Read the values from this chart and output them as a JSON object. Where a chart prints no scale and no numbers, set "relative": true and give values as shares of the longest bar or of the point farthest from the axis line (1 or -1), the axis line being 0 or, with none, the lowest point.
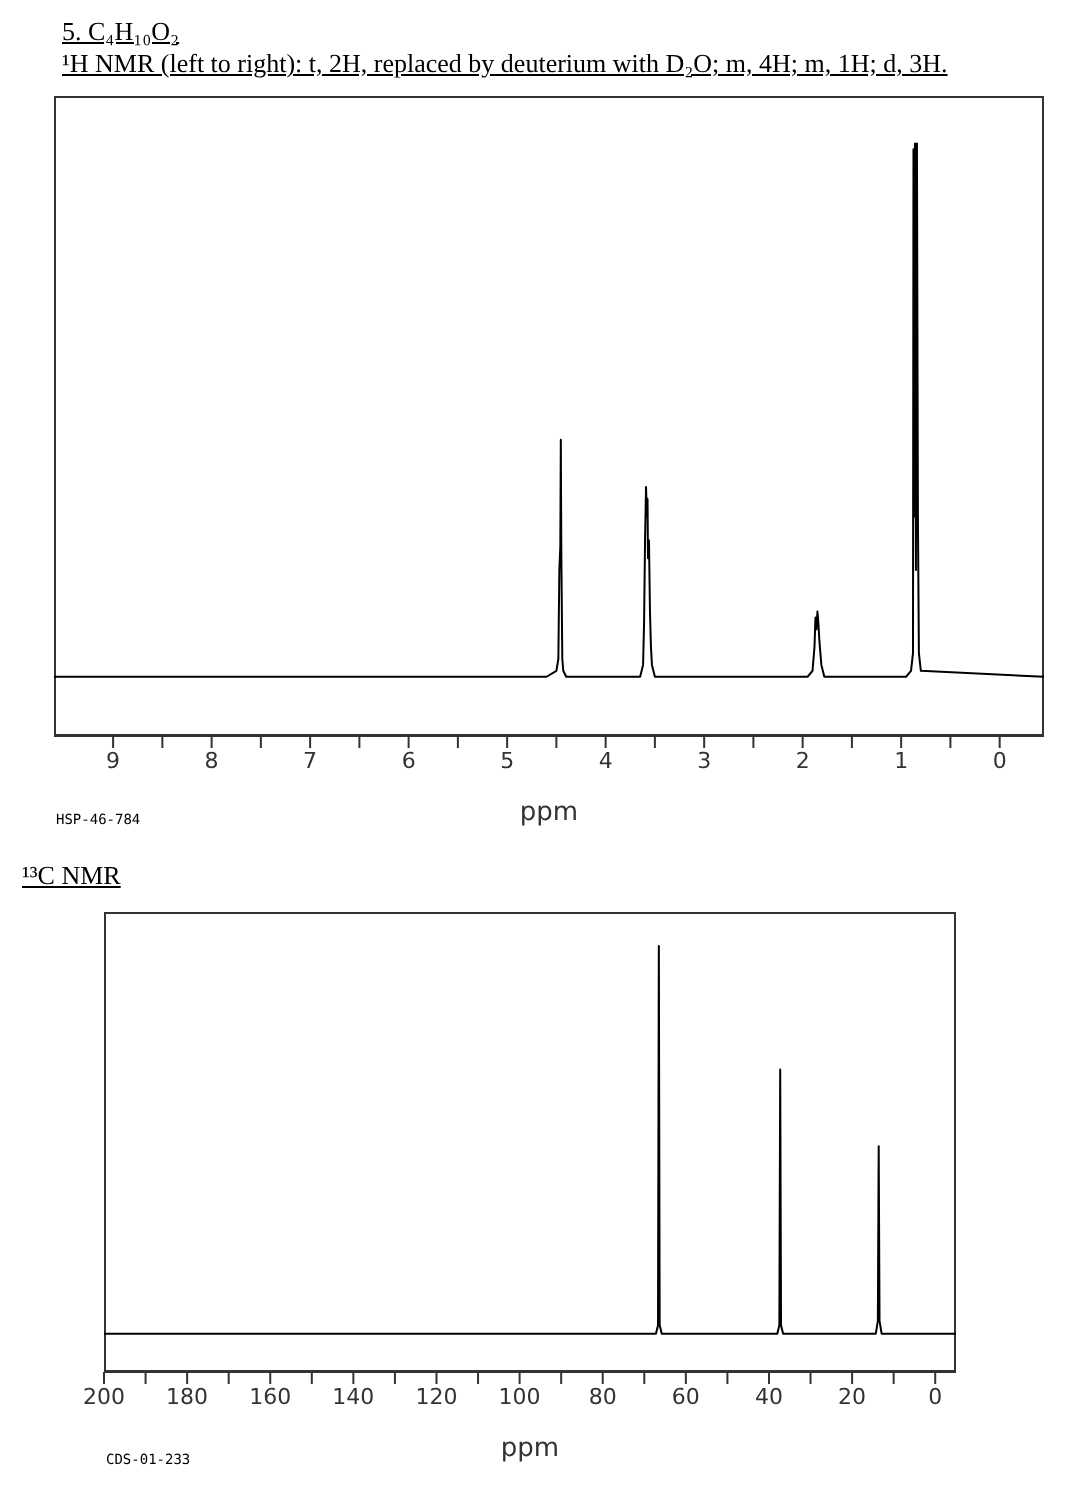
{
  "chart_data": [
    {
      "type": "line",
      "title": "5. C₄H₁₀O₂",
      "subtitle": "¹H NMR (left to right): t, 2H, replaced by deuterium with D₂O; m, 4H; m, 1H; d, 3H.",
      "xlabel": "ppm",
      "relative": true,
      "tick_labels": "x",
      "grid": false,
      "legend": false,
      "marker": "none",
      "line_style": "solid",
      "xlim": [
        9.6,
        -0.45
      ],
      "xticks": [
        9,
        {
          "value": 8.5,
          "label": null
        },
        8,
        {
          "value": 7.5,
          "label": null
        },
        7,
        {
          "value": 6.5,
          "label": null
        },
        6,
        {
          "value": 5.5,
          "label": null
        },
        5,
        {
          "value": 4.5,
          "label": null
        },
        4,
        {
          "value": 3.5,
          "label": null
        },
        3,
        {
          "value": 2.5,
          "label": null
        },
        2,
        {
          "value": 1.5,
          "label": null
        },
        1,
        {
          "value": 0.5,
          "label": null
        },
        0
      ],
      "annotations": [
        "HSP-46-784"
      ],
      "series": [
        {
          "color": "#000000",
          "x": [
            9.6,
            4.6,
            4.5,
            4.48,
            4.47,
            4.46,
            4.455,
            4.45,
            4.44,
            4.43,
            4.4,
            3.65,
            3.62,
            3.61,
            3.6,
            3.59,
            3.58,
            3.575,
            3.57,
            3.56,
            3.55,
            3.54,
            3.53,
            3.5,
            1.95,
            1.9,
            1.88,
            1.87,
            1.86,
            1.85,
            1.84,
            1.83,
            1.81,
            1.78,
            0.95,
            0.9,
            0.88,
            0.875,
            0.87,
            0.86,
            0.85,
            0.845,
            0.84,
            0.83,
            0.82,
            0.8,
            -0.45
          ],
          "values": [
            0.1,
            0.1,
            0.11,
            0.13,
            0.28,
            0.32,
            0.5,
            0.31,
            0.13,
            0.11,
            0.1,
            0.1,
            0.12,
            0.19,
            0.33,
            0.42,
            0.37,
            0.4,
            0.3,
            0.33,
            0.21,
            0.15,
            0.12,
            0.1,
            0.1,
            0.11,
            0.15,
            0.2,
            0.18,
            0.21,
            0.19,
            0.16,
            0.12,
            0.1,
            0.1,
            0.11,
            0.14,
            0.99,
            0.37,
            1,
            0.28,
            0.98,
            1,
            0.37,
            0.14,
            0.11,
            0.1
          ]
        }
      ]
    },
    {
      "type": "line",
      "title": "¹³C NMR",
      "xlabel": "ppm",
      "relative": true,
      "tick_labels": "x",
      "grid": false,
      "legend": false,
      "marker": "none",
      "line_style": "solid",
      "xlim": [
        200,
        -5
      ],
      "xticks": [
        200,
        {
          "value": 190,
          "label": null
        },
        180,
        {
          "value": 170,
          "label": null
        },
        160,
        {
          "value": 150,
          "label": null
        },
        140,
        {
          "value": 130,
          "label": null
        },
        120,
        {
          "value": 110,
          "label": null
        },
        100,
        {
          "value": 90,
          "label": null
        },
        80,
        {
          "value": 70,
          "label": null
        },
        60,
        {
          "value": 50,
          "label": null
        },
        40,
        {
          "value": 30,
          "label": null
        },
        20,
        {
          "value": 10,
          "label": null
        },
        0
      ],
      "annotations": [
        "CDS-01-233"
      ],
      "series": [
        {
          "color": "#000000",
          "x": [
            200,
            67.2,
            66.7,
            66.5,
            66.3,
            65.8,
            38,
            37.5,
            37.3,
            37.1,
            36.6,
            14.3,
            13.8,
            13.6,
            13.4,
            12.9,
            -5
          ],
          "values": [
            0.09,
            0.09,
            0.11,
            1,
            0.11,
            0.09,
            0.09,
            0.11,
            0.71,
            0.11,
            0.09,
            0.09,
            0.12,
            0.53,
            0.12,
            0.09,
            0.09
          ]
        }
      ]
    }
  ]
}
